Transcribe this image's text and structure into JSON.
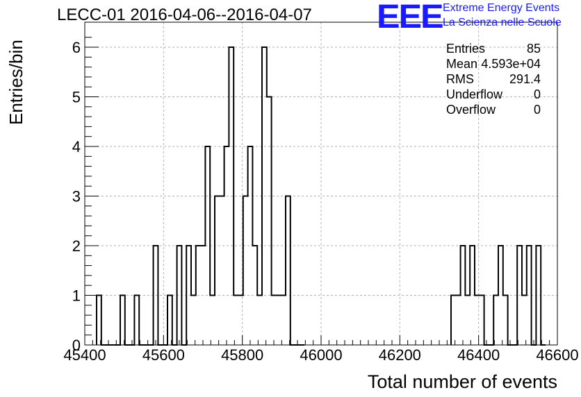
{
  "chart_data": {
    "type": "histogram",
    "title": "LECC-01 2016-04-06--2016-04-07",
    "xlabel": "Total number of events",
    "ylabel": "Entries/bin",
    "xlim": [
      45400,
      46600
    ],
    "ylim": [
      0,
      6.3
    ],
    "x_ticks": [
      "45400",
      "45600",
      "45800",
      "46000",
      "46200",
      "46400",
      "46600"
    ],
    "y_ticks": [
      "0",
      "1",
      "2",
      "3",
      "4",
      "5",
      "6"
    ],
    "grid": true,
    "bin_width": 12,
    "bin_edges_start": [
      45430,
      45442,
      45454,
      45466,
      45478,
      45490,
      45502,
      45514,
      45526,
      45538,
      45550,
      45562,
      45574,
      45586,
      45598,
      45610,
      45622,
      45634,
      45646,
      45658,
      45670,
      45682,
      45694,
      45706,
      45718,
      45730,
      45742,
      45754,
      45766,
      45778,
      45790,
      45802,
      45814,
      45826,
      45838,
      45850,
      45862,
      45874,
      45886,
      45898,
      45910,
      45922,
      45934,
      45946,
      46330,
      46342,
      46354,
      46366,
      46378,
      46390,
      46402,
      46414,
      46426,
      46438,
      46450,
      46462,
      46474,
      46486,
      46498,
      46510,
      46522,
      46534,
      46546,
      46558
    ],
    "values": [
      1,
      0,
      0,
      0,
      0,
      1,
      0,
      0,
      1,
      0,
      0,
      0,
      2,
      0,
      0,
      1,
      0,
      2,
      0,
      2,
      1,
      2,
      2,
      4,
      1,
      3,
      3,
      4,
      6,
      1,
      1,
      3,
      4,
      2,
      1,
      6,
      5,
      1,
      1,
      1,
      3,
      0,
      0,
      0,
      1,
      1,
      2,
      1,
      2,
      1,
      1,
      0,
      0,
      1,
      2,
      1,
      0,
      0,
      2,
      1,
      2,
      0,
      2,
      0
    ]
  },
  "stats": {
    "entries_label": "Entries",
    "entries_value": "85",
    "mean_label": "Mean",
    "mean_value": "4.593e+04",
    "rms_label": "RMS",
    "rms_value": "291.4",
    "underflow_label": "Underflow",
    "underflow_value": "0",
    "overflow_label": "Overflow",
    "overflow_value": "0"
  },
  "logo": {
    "mark": "EEE",
    "line1": "Extreme Energy Events",
    "line2": "La Scienza nelle Scuole",
    "color": "#1a1aff"
  }
}
